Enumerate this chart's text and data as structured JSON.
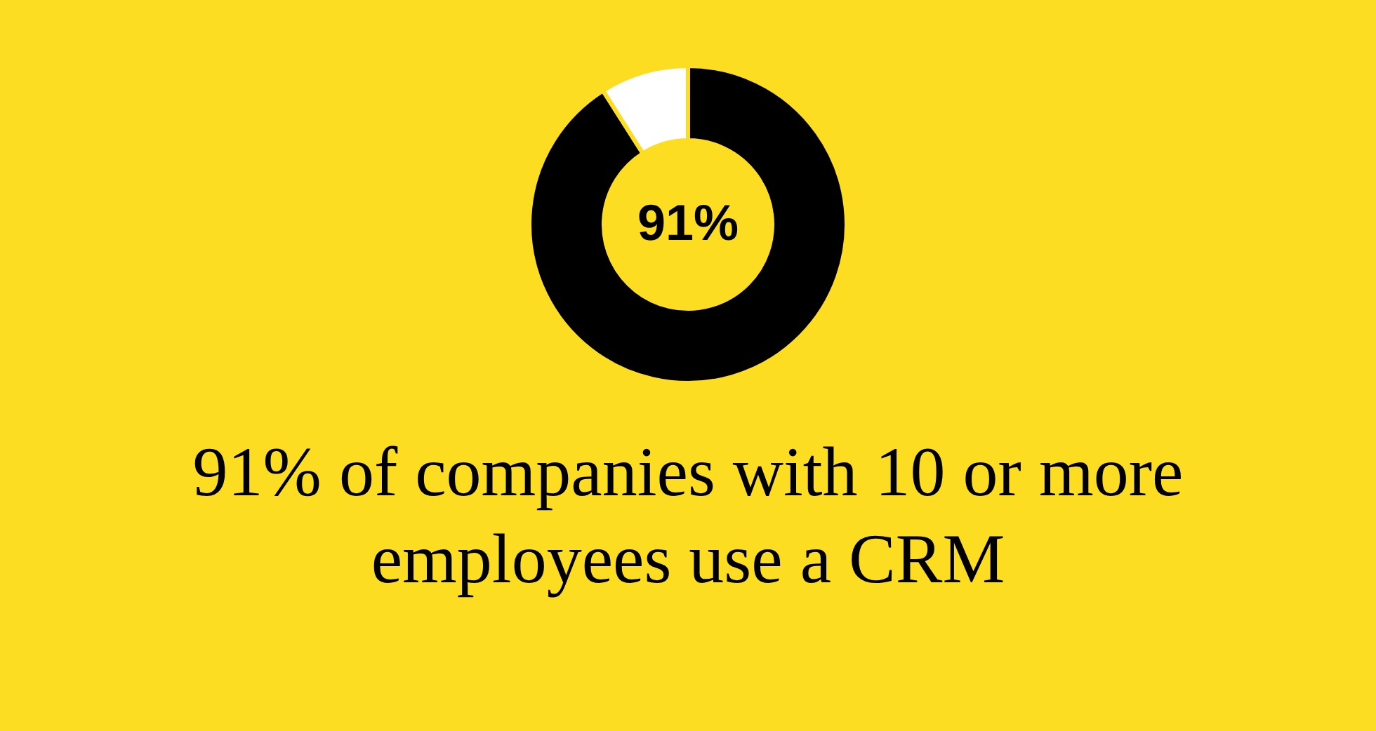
{
  "chart_data": {
    "type": "donut",
    "title": "91% of companies with 10 or more employees use a CRM",
    "categories": [
      null,
      null
    ],
    "values": [
      91,
      9
    ],
    "colors": [
      "#000000",
      "#ffffff"
    ],
    "value_labels": [
      "91%",
      null
    ]
  }
}
